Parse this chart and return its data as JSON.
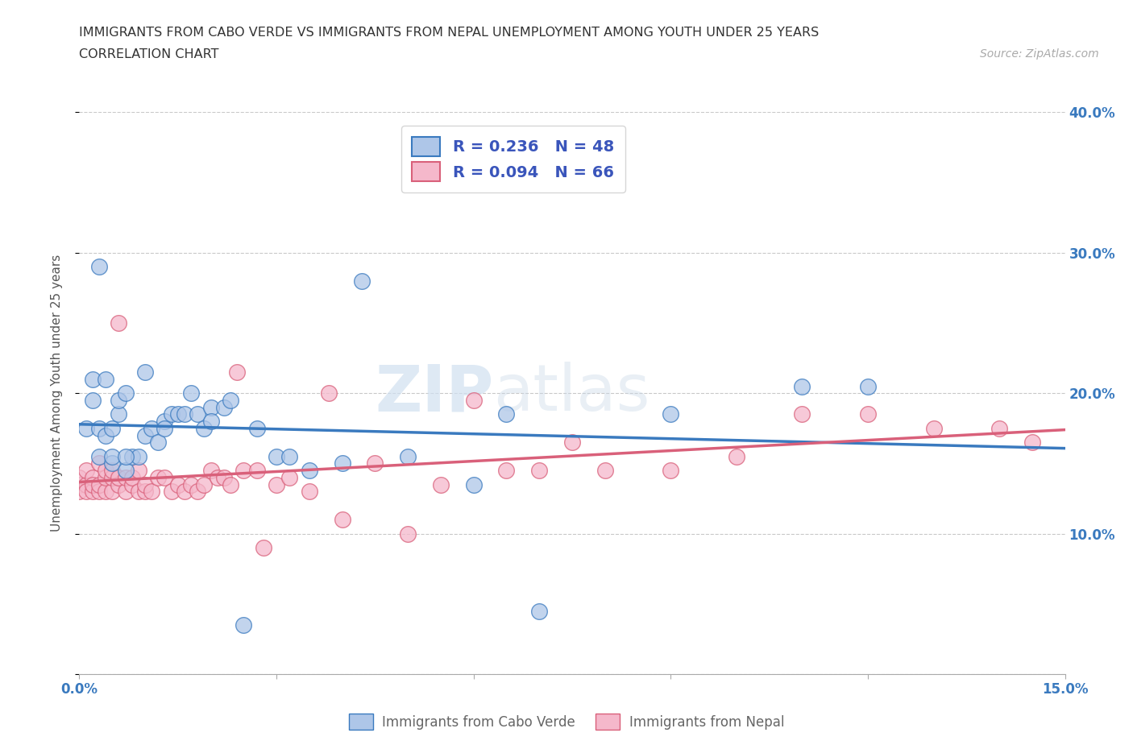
{
  "title_line1": "IMMIGRANTS FROM CABO VERDE VS IMMIGRANTS FROM NEPAL UNEMPLOYMENT AMONG YOUTH UNDER 25 YEARS",
  "title_line2": "CORRELATION CHART",
  "source": "Source: ZipAtlas.com",
  "ylabel_label": "Unemployment Among Youth under 25 years",
  "xmin": 0.0,
  "xmax": 0.15,
  "ymin": 0.0,
  "ymax": 0.4,
  "x_ticks": [
    0.0,
    0.03,
    0.06,
    0.09,
    0.12,
    0.15
  ],
  "y_ticks": [
    0.0,
    0.1,
    0.2,
    0.3,
    0.4
  ],
  "cabo_verde_color": "#aec6e8",
  "nepal_color": "#f5b8cb",
  "cabo_verde_line_color": "#3a7abf",
  "nepal_line_color": "#d9607a",
  "R_cabo": 0.236,
  "N_cabo": 48,
  "R_nepal": 0.094,
  "N_nepal": 66,
  "legend_text_color": "#3a55bb",
  "watermark_zip": "ZIP",
  "watermark_atlas": "atlas",
  "cabo_verde_x": [
    0.001,
    0.002,
    0.002,
    0.003,
    0.003,
    0.004,
    0.004,
    0.005,
    0.005,
    0.006,
    0.006,
    0.007,
    0.007,
    0.008,
    0.009,
    0.01,
    0.01,
    0.011,
    0.012,
    0.013,
    0.014,
    0.015,
    0.016,
    0.017,
    0.018,
    0.019,
    0.02,
    0.022,
    0.023,
    0.025,
    0.027,
    0.03,
    0.032,
    0.035,
    0.04,
    0.043,
    0.05,
    0.06,
    0.065,
    0.07,
    0.09,
    0.11,
    0.12,
    0.003,
    0.005,
    0.007,
    0.013,
    0.02
  ],
  "cabo_verde_y": [
    0.175,
    0.195,
    0.21,
    0.155,
    0.175,
    0.17,
    0.21,
    0.15,
    0.175,
    0.185,
    0.195,
    0.145,
    0.2,
    0.155,
    0.155,
    0.17,
    0.215,
    0.175,
    0.165,
    0.18,
    0.185,
    0.185,
    0.185,
    0.2,
    0.185,
    0.175,
    0.19,
    0.19,
    0.195,
    0.035,
    0.175,
    0.155,
    0.155,
    0.145,
    0.15,
    0.28,
    0.155,
    0.135,
    0.185,
    0.045,
    0.185,
    0.205,
    0.205,
    0.29,
    0.155,
    0.155,
    0.175,
    0.18
  ],
  "nepal_x": [
    0.0,
    0.0,
    0.0,
    0.001,
    0.001,
    0.001,
    0.002,
    0.002,
    0.002,
    0.003,
    0.003,
    0.003,
    0.004,
    0.004,
    0.004,
    0.005,
    0.005,
    0.005,
    0.006,
    0.006,
    0.006,
    0.007,
    0.007,
    0.008,
    0.008,
    0.009,
    0.009,
    0.01,
    0.01,
    0.011,
    0.012,
    0.013,
    0.014,
    0.015,
    0.016,
    0.017,
    0.018,
    0.019,
    0.02,
    0.021,
    0.022,
    0.023,
    0.025,
    0.027,
    0.03,
    0.032,
    0.035,
    0.04,
    0.045,
    0.05,
    0.055,
    0.06,
    0.065,
    0.07,
    0.08,
    0.09,
    0.1,
    0.11,
    0.12,
    0.13,
    0.14,
    0.145,
    0.024,
    0.028,
    0.038,
    0.075
  ],
  "nepal_y": [
    0.135,
    0.14,
    0.13,
    0.135,
    0.145,
    0.13,
    0.13,
    0.14,
    0.135,
    0.13,
    0.135,
    0.15,
    0.13,
    0.14,
    0.145,
    0.13,
    0.14,
    0.145,
    0.135,
    0.14,
    0.25,
    0.13,
    0.14,
    0.135,
    0.14,
    0.13,
    0.145,
    0.13,
    0.135,
    0.13,
    0.14,
    0.14,
    0.13,
    0.135,
    0.13,
    0.135,
    0.13,
    0.135,
    0.145,
    0.14,
    0.14,
    0.135,
    0.145,
    0.145,
    0.135,
    0.14,
    0.13,
    0.11,
    0.15,
    0.1,
    0.135,
    0.195,
    0.145,
    0.145,
    0.145,
    0.145,
    0.155,
    0.185,
    0.185,
    0.175,
    0.175,
    0.165,
    0.215,
    0.09,
    0.2,
    0.165
  ]
}
